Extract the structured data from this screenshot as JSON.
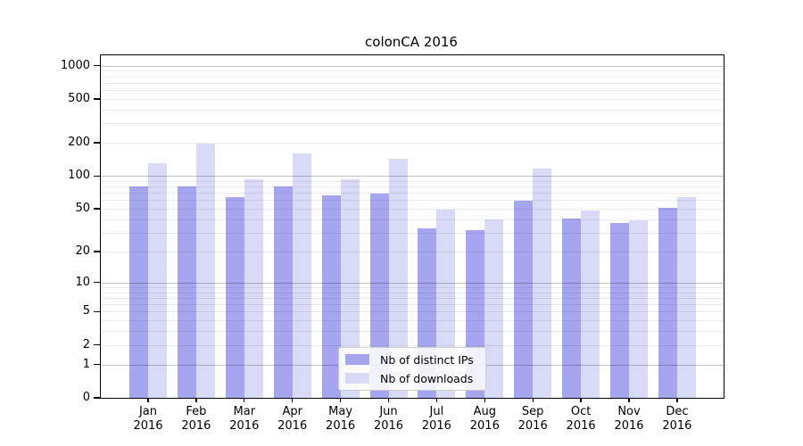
{
  "chart_data": {
    "type": "bar",
    "title": "colonCA 2016",
    "categories": [
      "Jan",
      "Feb",
      "Mar",
      "Apr",
      "May",
      "Jun",
      "Jul",
      "Aug",
      "Sep",
      "Oct",
      "Nov",
      "Dec"
    ],
    "year": "2016",
    "series": [
      {
        "name": "Nb of distinct IPs",
        "color": "#a5a5f0",
        "values": [
          81,
          81,
          64,
          81,
          67,
          69,
          33,
          32,
          59,
          41,
          37,
          51
        ]
      },
      {
        "name": "Nb of downloads",
        "color": "#d9d9f8",
        "values": [
          130,
          197,
          93,
          161,
          94,
          143,
          49,
          40,
          117,
          48,
          39,
          64
        ]
      }
    ],
    "y_axis": {
      "ticks": [
        0,
        1,
        2,
        5,
        10,
        20,
        50,
        100,
        200,
        500,
        1000
      ],
      "scale": "log10(1+x)",
      "max_value": 1240
    },
    "x_axis": {
      "tick_format": "month over year, two lines"
    },
    "legend": {
      "entries": [
        "Nb of distinct IPs",
        "Nb of downloads"
      ],
      "position": "lower center"
    },
    "grid": "horizontal log minor+major lines drawn over bars"
  }
}
